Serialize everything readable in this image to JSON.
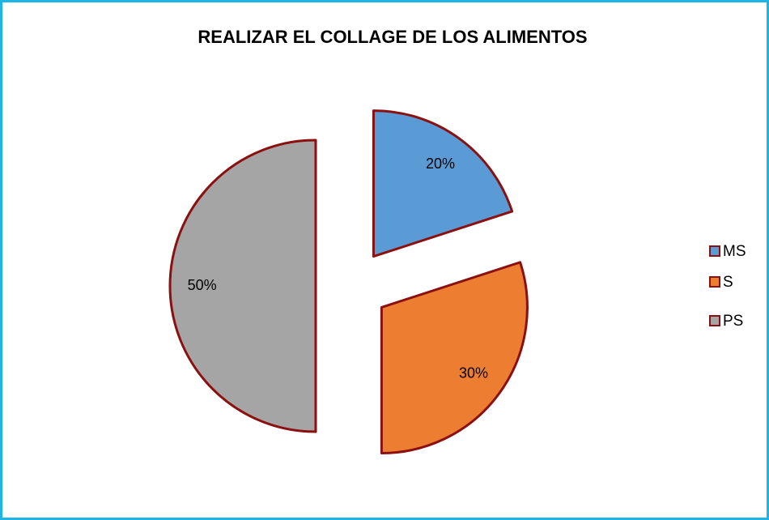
{
  "chart_data": {
    "type": "pie",
    "title": "REALIZAR EL COLLAGE DE LOS ALIMENTOS",
    "categories": [
      "MS",
      "S",
      "PS"
    ],
    "values": [
      20,
      30,
      50
    ],
    "value_labels": [
      "20%",
      "30%",
      "50%"
    ],
    "colors": [
      "#5b9bd5",
      "#ed7d31",
      "#a5a5a5"
    ],
    "legend": "right"
  }
}
